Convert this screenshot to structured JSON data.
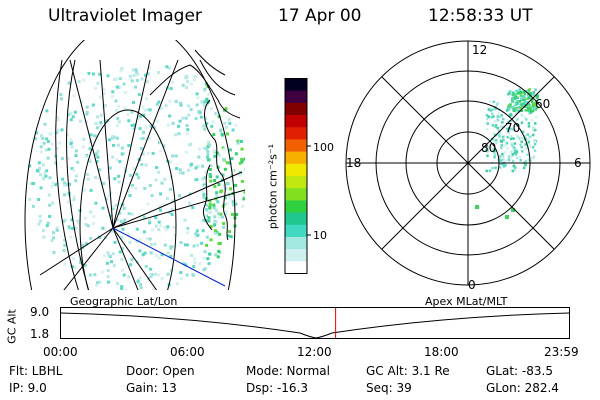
{
  "header": {
    "title": "Ultraviolet Imager",
    "date": "17 Apr 00",
    "time": "12:58:33 UT"
  },
  "colorbar": {
    "unit_label": "photon cm⁻²s⁻¹",
    "tick_100": "100",
    "tick_10": "10",
    "colors": [
      "#ffffff",
      "#d0f0f0",
      "#a0e8e0",
      "#40d8c0",
      "#20c890",
      "#30d040",
      "#80e020",
      "#c0e810",
      "#f0e800",
      "#f8b000",
      "#f06000",
      "#e02000",
      "#c00000",
      "#800000",
      "#400040",
      "#000020"
    ]
  },
  "polar": {
    "label_12": "12",
    "label_18": "18",
    "label_6": "6",
    "label_0": "0",
    "ring_60": "60",
    "ring_70": "70",
    "ring_80": "80"
  },
  "captions": {
    "left": "Geographic Lat/Lon",
    "right": "Apex MLat/MLT"
  },
  "altitude_plot": {
    "axis_label": "GC Alt",
    "y_top": "9.0",
    "y_bottom": "1.8",
    "x_ticks": [
      "00:00",
      "06:00",
      "12:00",
      "18:00",
      "23:59"
    ],
    "current_time_fraction": 0.5406,
    "line_color": "#e00000"
  },
  "info": {
    "filter": "Flt: LBHL",
    "ip": "IP:  9.0",
    "door": "Door: Open",
    "gain": "Gain: 13",
    "mode": "Mode: Normal",
    "dsp": "Dsp:  -16.3",
    "gc_alt": "GC Alt: 3.1 Re",
    "seq": "Seq: 39",
    "glat": "GLat: -83.5",
    "glon": "GLon: 282.4"
  }
}
